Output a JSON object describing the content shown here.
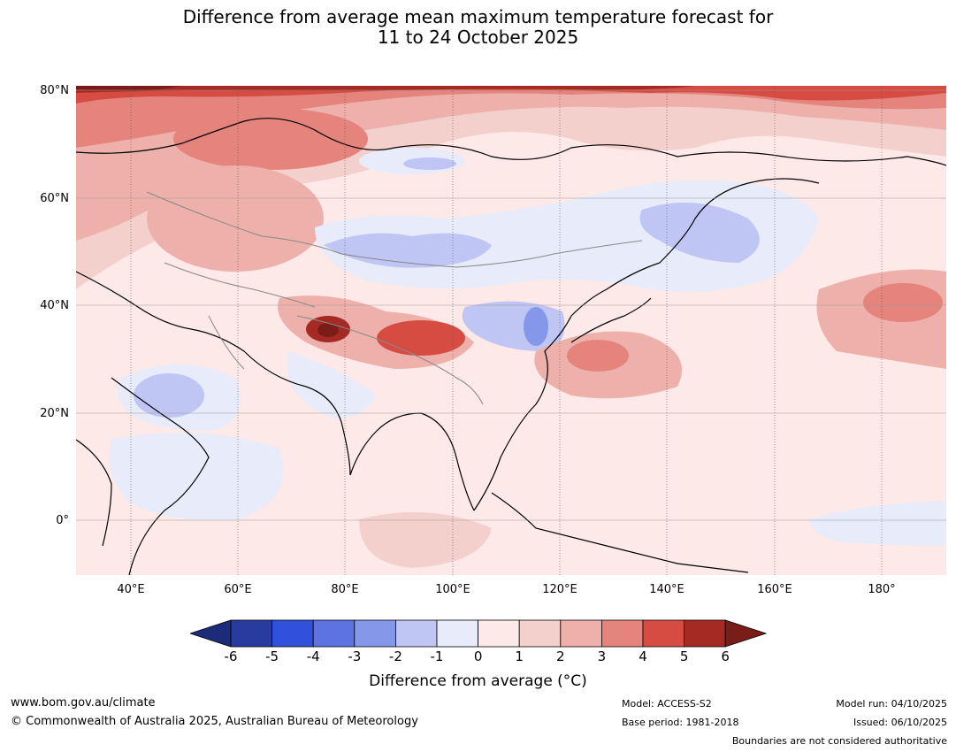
{
  "title": {
    "line1": "Difference from average mean maximum temperature forecast for",
    "line2": "11 to 24 October 2025"
  },
  "map": {
    "lat_labels": [
      "80°N",
      "60°N",
      "40°N",
      "20°N",
      "0°"
    ],
    "lon_labels": [
      "40°E",
      "60°E",
      "80°E",
      "100°E",
      "120°E",
      "140°E",
      "160°E",
      "180°"
    ],
    "extent": {
      "lon_min": 30,
      "lon_max": 190,
      "lat_min": -10,
      "lat_max": 80
    }
  },
  "colorbar": {
    "ticks": [
      "-6",
      "-5",
      "-4",
      "-3",
      "-2",
      "-1",
      "0",
      "1",
      "2",
      "3",
      "4",
      "5",
      "6"
    ],
    "colors": [
      "#283b9f",
      "#3151dd",
      "#5d73e2",
      "#8597e9",
      "#bfc6f3",
      "#e8ebfa",
      "#fde9e8",
      "#f4d0cd",
      "#eeb0aa",
      "#e5837d",
      "#d64c42",
      "#a52a24"
    ],
    "under_color": "#1c2b7a",
    "over_color": "#7a1d18",
    "label": "Difference from average (°C)"
  },
  "footer": {
    "website": "www.bom.gov.au/climate",
    "copyright": "© Commonwealth of Australia 2025, Australian Bureau of Meteorology",
    "model": "Model: ACCESS-S2",
    "base_period": "Base period: 1981-2018",
    "model_run": "Model run: 04/10/2025",
    "issued": "Issued: 06/10/2025",
    "disclaimer": "Boundaries are not considered authoritative"
  }
}
